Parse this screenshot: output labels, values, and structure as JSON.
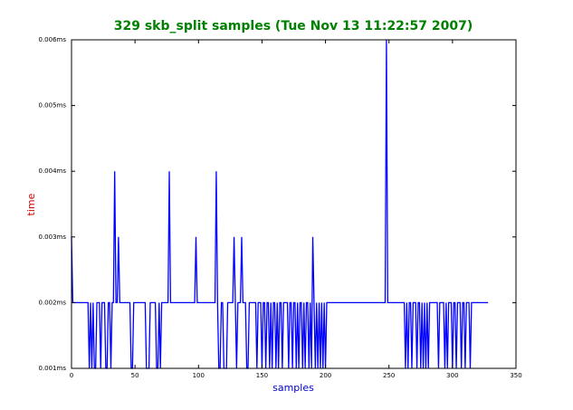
{
  "chart_data": {
    "type": "line",
    "title": "329 skb_split samples (Tue Nov 13 11:22:57 2007)",
    "xlabel": "samples",
    "ylabel": "time",
    "xlim": [
      0,
      350
    ],
    "xticks": [
      0,
      50,
      100,
      150,
      200,
      250,
      300,
      350
    ],
    "ylim": [
      0.001,
      0.006
    ],
    "yticks": [
      {
        "value": 0.001,
        "label": "0.001ms"
      },
      {
        "value": 0.002,
        "label": "0.002ms"
      },
      {
        "value": 0.003,
        "label": "0.003ms"
      },
      {
        "value": 0.004,
        "label": "0.004ms"
      },
      {
        "value": 0.005,
        "label": "0.005ms"
      },
      {
        "value": 0.006,
        "label": "0.006ms"
      }
    ],
    "series": [
      {
        "color": "#0000ff",
        "values": [
          0.003,
          0.002,
          0.002,
          0.002,
          0.002,
          0.002,
          0.002,
          0.002,
          0.002,
          0.002,
          0.002,
          0.002,
          0.002,
          0.002,
          0.001,
          0.002,
          0.001,
          0.002,
          0.001,
          0.001,
          0.002,
          0.002,
          0.002,
          0.001,
          0.002,
          0.002,
          0.002,
          0.001,
          0.001,
          0.002,
          0.002,
          0.001,
          0.002,
          0.002,
          0.004,
          0.002,
          0.002,
          0.003,
          0.002,
          0.002,
          0.002,
          0.002,
          0.002,
          0.002,
          0.002,
          0.002,
          0.002,
          0.001,
          0.001,
          0.002,
          0.002,
          0.002,
          0.002,
          0.002,
          0.002,
          0.002,
          0.002,
          0.002,
          0.002,
          0.001,
          0.001,
          0.001,
          0.002,
          0.002,
          0.002,
          0.002,
          0.002,
          0.001,
          0.001,
          0.002,
          0.001,
          0.002,
          0.002,
          0.002,
          0.002,
          0.002,
          0.002,
          0.004,
          0.002,
          0.002,
          0.002,
          0.002,
          0.002,
          0.002,
          0.002,
          0.002,
          0.002,
          0.002,
          0.002,
          0.002,
          0.002,
          0.002,
          0.002,
          0.002,
          0.002,
          0.002,
          0.002,
          0.002,
          0.003,
          0.002,
          0.002,
          0.002,
          0.002,
          0.002,
          0.002,
          0.002,
          0.002,
          0.002,
          0.002,
          0.002,
          0.002,
          0.002,
          0.002,
          0.002,
          0.004,
          0.002,
          0.001,
          0.001,
          0.002,
          0.002,
          0.001,
          0.001,
          0.001,
          0.002,
          0.002,
          0.002,
          0.002,
          0.002,
          0.003,
          0.002,
          0.001,
          0.002,
          0.002,
          0.002,
          0.003,
          0.002,
          0.002,
          0.002,
          0.001,
          0.001,
          0.002,
          0.002,
          0.002,
          0.002,
          0.002,
          0.002,
          0.001,
          0.002,
          0.002,
          0.002,
          0.001,
          0.002,
          0.002,
          0.001,
          0.002,
          0.002,
          0.001,
          0.002,
          0.001,
          0.002,
          0.002,
          0.001,
          0.002,
          0.001,
          0.002,
          0.002,
          0.001,
          0.002,
          0.002,
          0.002,
          0.002,
          0.001,
          0.002,
          0.002,
          0.001,
          0.002,
          0.002,
          0.001,
          0.002,
          0.001,
          0.002,
          0.002,
          0.001,
          0.002,
          0.001,
          0.002,
          0.002,
          0.001,
          0.002,
          0.001,
          0.003,
          0.002,
          0.001,
          0.002,
          0.001,
          0.002,
          0.001,
          0.002,
          0.001,
          0.002,
          0.001,
          0.002,
          0.002,
          0.002,
          0.002,
          0.002,
          0.002,
          0.002,
          0.002,
          0.002,
          0.002,
          0.002,
          0.002,
          0.002,
          0.002,
          0.002,
          0.002,
          0.002,
          0.002,
          0.002,
          0.002,
          0.002,
          0.002,
          0.002,
          0.002,
          0.002,
          0.002,
          0.002,
          0.002,
          0.002,
          0.002,
          0.002,
          0.002,
          0.002,
          0.002,
          0.002,
          0.002,
          0.002,
          0.002,
          0.002,
          0.002,
          0.002,
          0.002,
          0.002,
          0.002,
          0.002,
          0.002,
          0.002,
          0.006,
          0.002,
          0.002,
          0.002,
          0.002,
          0.002,
          0.002,
          0.002,
          0.002,
          0.002,
          0.002,
          0.002,
          0.002,
          0.002,
          0.002,
          0.001,
          0.002,
          0.001,
          0.002,
          0.002,
          0.001,
          0.002,
          0.002,
          0.002,
          0.001,
          0.002,
          0.002,
          0.001,
          0.002,
          0.001,
          0.002,
          0.001,
          0.002,
          0.001,
          0.002,
          0.002,
          0.002,
          0.002,
          0.002,
          0.002,
          0.002,
          0.001,
          0.002,
          0.002,
          0.002,
          0.002,
          0.001,
          0.002,
          0.001,
          0.002,
          0.002,
          0.002,
          0.001,
          0.002,
          0.002,
          0.001,
          0.002,
          0.002,
          0.002,
          0.001,
          0.002,
          0.002,
          0.001,
          0.002,
          0.002,
          0.002,
          0.001,
          0.002,
          0.002,
          0.002,
          0.002,
          0.002,
          0.002,
          0.002,
          0.002,
          0.002,
          0.002,
          0.002,
          0.002,
          0.002,
          0.002
        ]
      }
    ]
  }
}
